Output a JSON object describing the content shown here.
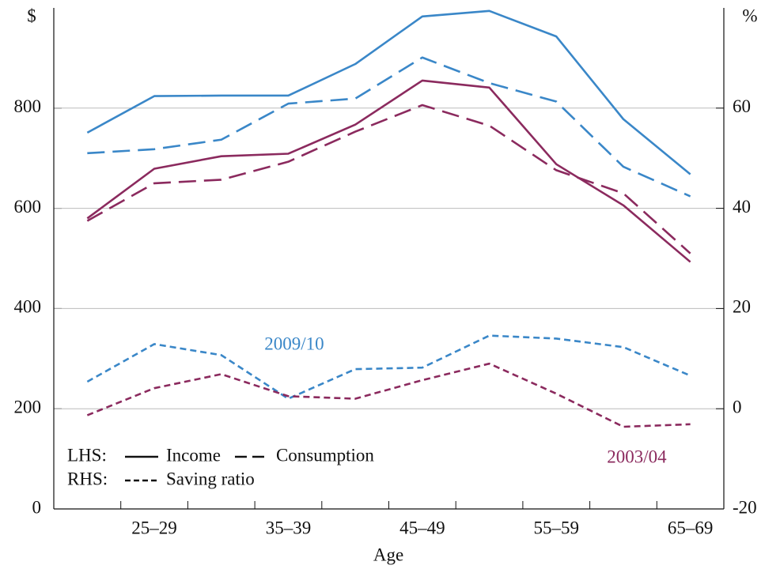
{
  "chart_data": {
    "type": "line",
    "y_unit": "$",
    "y2_unit": "%",
    "x_label": "Age",
    "categories": [
      null,
      "25–29",
      null,
      "35–39",
      null,
      "45–49",
      null,
      "55–59",
      null,
      "65–69"
    ],
    "ylim": [
      0,
      1000
    ],
    "yticks": [
      0,
      200,
      400,
      600,
      800
    ],
    "y2lim": [
      -20,
      80
    ],
    "y2ticks": [
      -20,
      0,
      20,
      40,
      60
    ],
    "grid": true,
    "series": [
      {
        "color": "#3a87c8",
        "style": "solid",
        "values": [
          751,
          824,
          825,
          825,
          888,
          983,
          994,
          943,
          778,
          668
        ]
      },
      {
        "color": "#3a87c8",
        "style": "dashed",
        "values": [
          710,
          718,
          737,
          809,
          819,
          901,
          850,
          813,
          683,
          624
        ]
      },
      {
        "color": "#8b2a5e",
        "style": "solid",
        "values": [
          580,
          679,
          704,
          709,
          767,
          855,
          841,
          688,
          606,
          493
        ]
      },
      {
        "color": "#8b2a5e",
        "style": "dashed",
        "values": [
          575,
          650,
          657,
          693,
          753,
          806,
          765,
          676,
          630,
          510
        ]
      },
      {
        "color": "#3a87c8",
        "style": "dotted",
        "axis": "y2",
        "values": [
          5.4,
          12.9,
          10.7,
          2,
          7.9,
          8.2,
          14.6,
          14,
          12.3,
          6.6
        ]
      },
      {
        "color": "#8b2a5e",
        "style": "dotted",
        "axis": "y2",
        "values": [
          -1.3,
          4.1,
          6.9,
          2.5,
          2,
          5.7,
          9,
          3,
          -3.6,
          -3.1
        ]
      }
    ],
    "annotations": [
      {
        "text": "2009/10",
        "color": "#3a87c8"
      },
      {
        "text": "2003/04",
        "color": "#8b2a5e"
      }
    ],
    "legend": {
      "rows": [
        {
          "label": "LHS:",
          "items": [
            {
              "text": "Income",
              "style": "solid"
            },
            {
              "text": "Consumption",
              "style": "dashed"
            }
          ]
        },
        {
          "label": "RHS:",
          "items": [
            {
              "text": "Saving ratio",
              "style": "dotted"
            }
          ]
        }
      ]
    }
  }
}
